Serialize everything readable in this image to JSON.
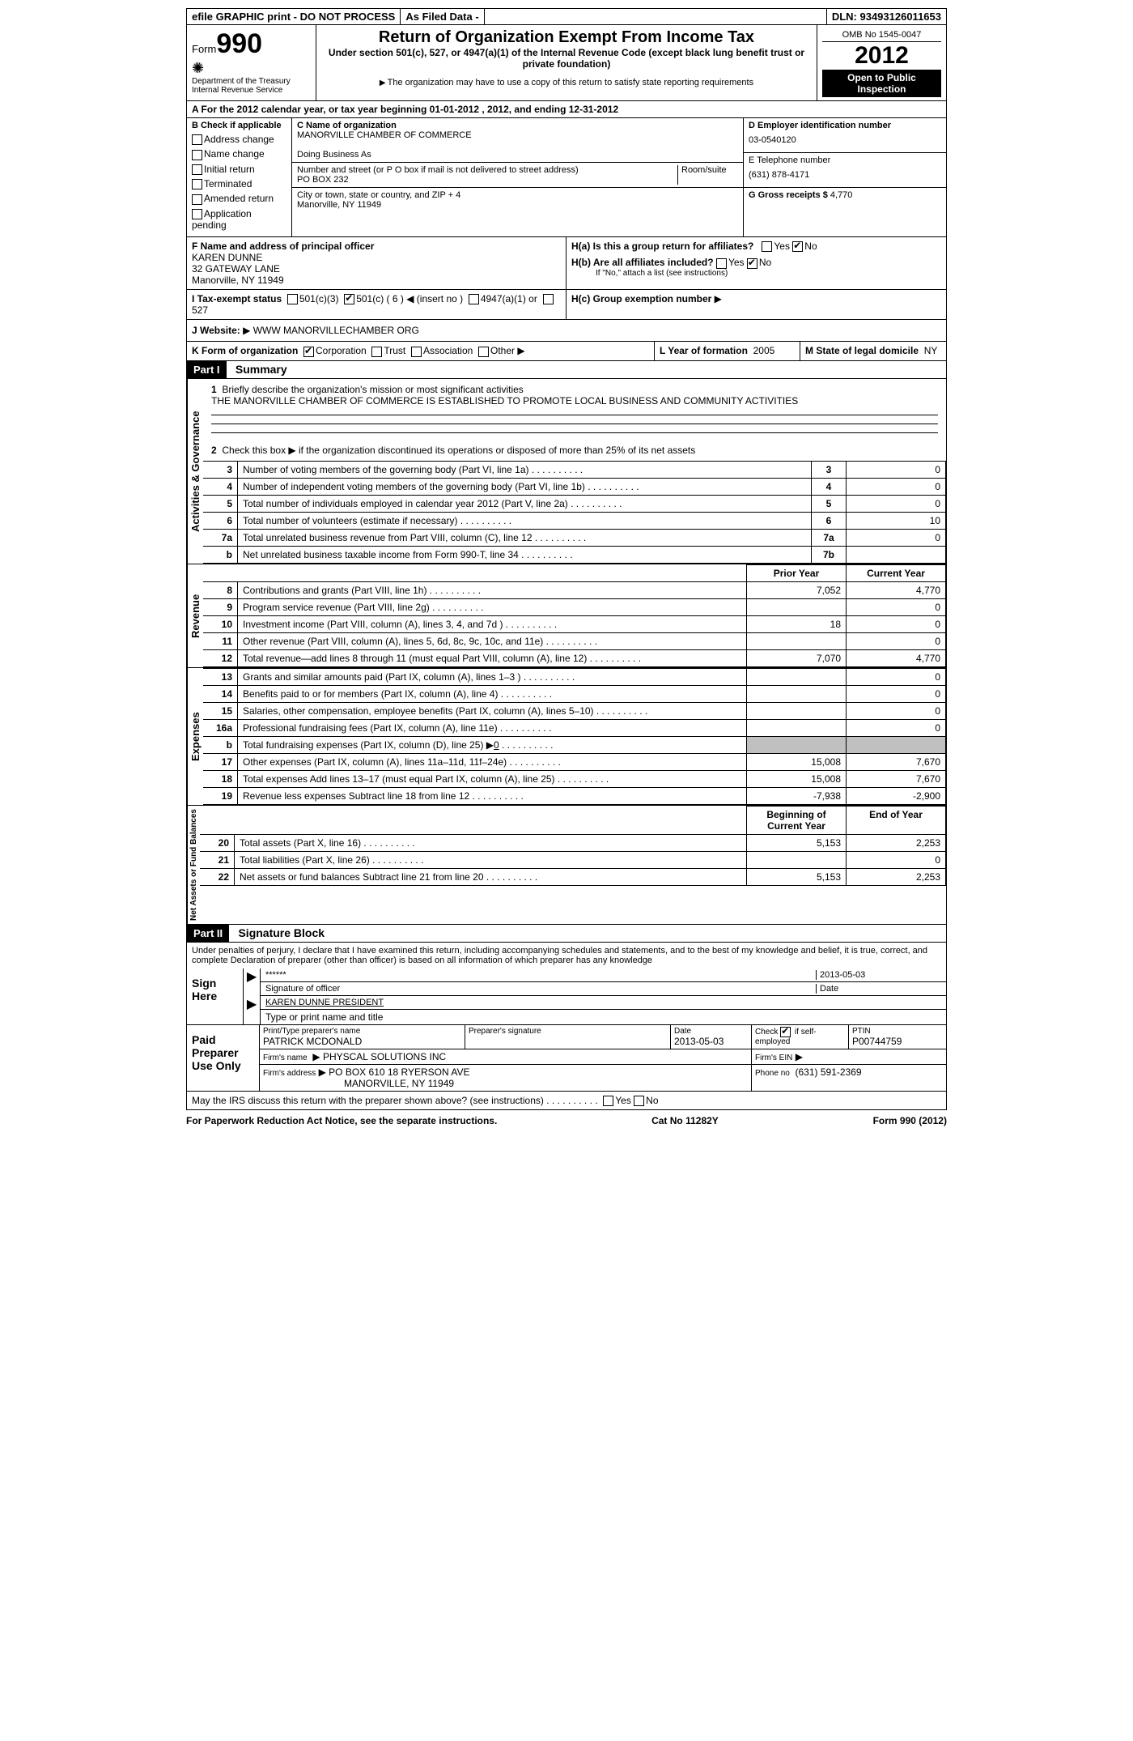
{
  "topbar": {
    "efile": "efile GRAPHIC print - DO NOT PROCESS",
    "asfiled": "As Filed Data -",
    "dln_label": "DLN:",
    "dln": "93493126011653"
  },
  "header": {
    "form_word": "Form",
    "form_no": "990",
    "dept": "Department of the Treasury",
    "irs": "Internal Revenue Service",
    "title": "Return of Organization Exempt From Income Tax",
    "subtitle": "Under section 501(c), 527, or 4947(a)(1) of the Internal Revenue Code (except black lung benefit trust or private foundation)",
    "note": "The organization may have to use a copy of this return to satisfy state reporting requirements",
    "omb": "OMB No 1545-0047",
    "year": "2012",
    "open_public": "Open to Public Inspection"
  },
  "line_a": "A For the 2012 calendar year, or tax year beginning 01-01-2012    , 2012, and ending 12-31-2012",
  "section_b": {
    "title": "B  Check if applicable",
    "checks": [
      "Address change",
      "Name change",
      "Initial return",
      "Terminated",
      "Amended return",
      "Application pending"
    ]
  },
  "section_c": {
    "label": "C Name of organization",
    "name": "MANORVILLE CHAMBER OF COMMERCE",
    "dba_label": "Doing Business As",
    "addr_label": "Number and street (or P O  box if mail is not delivered to street address)",
    "room_label": "Room/suite",
    "addr": "PO BOX 232",
    "city_label": "City or town, state or country, and ZIP + 4",
    "city": "Manorville, NY  11949"
  },
  "section_d": {
    "label": "D Employer identification number",
    "ein": "03-0540120"
  },
  "section_e": {
    "label": "E Telephone number",
    "phone": "(631) 878-4171"
  },
  "section_g": {
    "label": "G Gross receipts $",
    "amount": "4,770"
  },
  "section_f": {
    "label": "F  Name and address of principal officer",
    "name": "KAREN DUNNE",
    "addr1": "32 GATEWAY LANE",
    "addr2": "Manorville, NY  11949"
  },
  "section_h": {
    "ha": "H(a)  Is this a group return for affiliates?",
    "hb": "H(b)  Are all affiliates included?",
    "hb_note": "If \"No,\" attach a list  (see instructions)",
    "hc": "H(c)   Group exemption number",
    "yes": "Yes",
    "no": "No"
  },
  "section_i": {
    "label": "I   Tax-exempt status",
    "opts": [
      "501(c)(3)",
      "501(c) ( 6 )",
      "(insert no )",
      "4947(a)(1) or",
      "527"
    ]
  },
  "section_j": {
    "label": "J   Website:",
    "site": "WWW MANORVILLECHAMBER ORG"
  },
  "section_k": {
    "label": "K Form of organization",
    "opts": [
      "Corporation",
      "Trust",
      "Association",
      "Other"
    ]
  },
  "section_l": {
    "label": "L  Year of formation",
    "val": "2005"
  },
  "section_m": {
    "label": "M State of legal domicile",
    "val": "NY"
  },
  "part1": {
    "header": "Part I",
    "title": "Summary",
    "side_act": "Activities & Governance",
    "side_rev": "Revenue",
    "side_exp": "Expenses",
    "side_net": "Net Assets or Fund Balances",
    "line1_label": "Briefly describe the organization's mission or most significant activities",
    "line1_text": "THE MANORVILLE CHAMBER OF COMMERCE IS ESTABLISHED TO PROMOTE LOCAL BUSINESS AND COMMUNITY ACTIVITIES",
    "line2": "Check this box ▶     if the organization discontinued its operations or disposed of more than 25% of its net assets",
    "rows_gov": [
      {
        "n": "3",
        "t": "Number of voting members of the governing body (Part VI, line 1a)",
        "c": "3",
        "v": "0"
      },
      {
        "n": "4",
        "t": "Number of independent voting members of the governing body (Part VI, line 1b)",
        "c": "4",
        "v": "0"
      },
      {
        "n": "5",
        "t": "Total number of individuals employed in calendar year 2012 (Part V, line 2a)",
        "c": "5",
        "v": "0"
      },
      {
        "n": "6",
        "t": "Total number of volunteers (estimate if necessary)",
        "c": "6",
        "v": "10"
      },
      {
        "n": "7a",
        "t": "Total unrelated business revenue from Part VIII, column (C), line 12",
        "c": "7a",
        "v": "0"
      },
      {
        "n": "b",
        "t": "Net unrelated business taxable income from Form 990-T, line 34",
        "c": "7b",
        "v": ""
      }
    ],
    "prior_year": "Prior Year",
    "current_year": "Current Year",
    "rows_rev": [
      {
        "n": "8",
        "t": "Contributions and grants (Part VIII, line 1h)",
        "p": "7,052",
        "c": "4,770"
      },
      {
        "n": "9",
        "t": "Program service revenue (Part VIII, line 2g)",
        "p": "",
        "c": "0"
      },
      {
        "n": "10",
        "t": "Investment income (Part VIII, column (A), lines 3, 4, and 7d )",
        "p": "18",
        "c": "0"
      },
      {
        "n": "11",
        "t": "Other revenue (Part VIII, column (A), lines 5, 6d, 8c, 9c, 10c, and 11e)",
        "p": "",
        "c": "0"
      },
      {
        "n": "12",
        "t": "Total revenue—add lines 8 through 11 (must equal Part VIII, column (A), line 12)",
        "p": "7,070",
        "c": "4,770"
      }
    ],
    "rows_exp": [
      {
        "n": "13",
        "t": "Grants and similar amounts paid (Part IX, column (A), lines 1–3 )",
        "p": "",
        "c": "0"
      },
      {
        "n": "14",
        "t": "Benefits paid to or for members (Part IX, column (A), line 4)",
        "p": "",
        "c": "0"
      },
      {
        "n": "15",
        "t": "Salaries, other compensation, employee benefits (Part IX, column (A), lines 5–10)",
        "p": "",
        "c": "0"
      },
      {
        "n": "16a",
        "t": "Professional fundraising fees (Part IX, column (A), line 11e)",
        "p": "",
        "c": "0"
      },
      {
        "n": "b",
        "t": "Total fundraising expenses (Part IX, column (D), line 25) ▶",
        "p": "shade",
        "c": "shade",
        "extra": "0"
      },
      {
        "n": "17",
        "t": "Other expenses (Part IX, column (A), lines 11a–11d, 11f–24e)",
        "p": "15,008",
        "c": "7,670"
      },
      {
        "n": "18",
        "t": "Total expenses  Add lines 13–17 (must equal Part IX, column (A), line 25)",
        "p": "15,008",
        "c": "7,670"
      },
      {
        "n": "19",
        "t": "Revenue less expenses  Subtract line 18 from line 12",
        "p": "-7,938",
        "c": "-2,900"
      }
    ],
    "begin_year": "Beginning of Current Year",
    "end_year": "End of Year",
    "rows_net": [
      {
        "n": "20",
        "t": "Total assets (Part X, line 16)",
        "p": "5,153",
        "c": "2,253"
      },
      {
        "n": "21",
        "t": "Total liabilities (Part X, line 26)",
        "p": "",
        "c": "0"
      },
      {
        "n": "22",
        "t": "Net assets or fund balances  Subtract line 21 from line 20",
        "p": "5,153",
        "c": "2,253"
      }
    ]
  },
  "part2": {
    "header": "Part II",
    "title": "Signature Block",
    "declaration": "Under penalties of perjury, I declare that I have examined this return, including accompanying schedules and statements, and to the best of my knowledge and belief, it is true, correct, and complete  Declaration of preparer (other than officer) is based on all information of which preparer has any knowledge",
    "sign_here": "Sign Here",
    "sig_stars": "******",
    "sig_date": "2013-05-03",
    "sig_officer_label": "Signature of officer",
    "sig_date_label": "Date",
    "officer_name": "KAREN DUNNE PRESIDENT",
    "officer_type_label": "Type or print name and title",
    "paid_prep": "Paid Preparer Use Only",
    "prep_name_label": "Print/Type preparer's name",
    "prep_name": "PATRICK MCDONALD",
    "prep_sig_label": "Preparer's signature",
    "prep_date_label": "Date",
    "prep_date": "2013-05-03",
    "check_if": "Check",
    "self_emp": "if self-employed",
    "ptin_label": "PTIN",
    "ptin": "P00744759",
    "firm_name_label": "Firm's name",
    "firm_name": "PHYSCAL SOLUTIONS INC",
    "firm_ein_label": "Firm's EIN",
    "firm_addr_label": "Firm's address",
    "firm_addr1": "PO BOX 610 18 RYERSON AVE",
    "firm_addr2": "MANORVILLE, NY  11949",
    "firm_phone_label": "Phone no",
    "firm_phone": "(631) 591-2369",
    "discuss": "May the IRS discuss this return with the preparer shown above? (see instructions)"
  },
  "footer": {
    "left": "For Paperwork Reduction Act Notice, see the separate instructions.",
    "mid": "Cat No  11282Y",
    "right": "Form 990 (2012)"
  }
}
